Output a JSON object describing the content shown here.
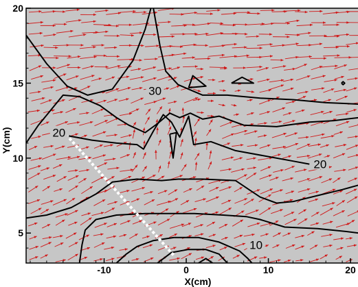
{
  "chart_data": {
    "type": "contour_vector",
    "xlabel": "X(cm)",
    "ylabel": "Y(cm)",
    "xlim": [
      -19.5,
      21
    ],
    "ylim": [
      3,
      20
    ],
    "xticks": [
      {
        "value": -10,
        "label": "-10"
      },
      {
        "value": 0,
        "label": "0"
      },
      {
        "value": 10,
        "label": "10"
      },
      {
        "value": 20,
        "label": "20"
      }
    ],
    "yticks": [
      {
        "value": 5,
        "label": "5"
      },
      {
        "value": 10,
        "label": "10"
      },
      {
        "value": 15,
        "label": "15"
      },
      {
        "value": 20,
        "label": "20"
      }
    ],
    "contour_levels": [
      10,
      20,
      30
    ],
    "contour_labels": [
      {
        "text": "30",
        "x": -3.8,
        "y": 14.5
      },
      {
        "text": "20",
        "x": -15.5,
        "y": 11.7
      },
      {
        "text": "20",
        "x": 16.3,
        "y": 9.6
      },
      {
        "text": "10",
        "x": 8.5,
        "y": 4.2
      }
    ],
    "contour_lines": [
      [
        [
          -19.5,
          18.2
        ],
        [
          -17,
          16.3
        ],
        [
          -14.5,
          14.8
        ],
        [
          -12,
          14.2
        ],
        [
          -9,
          14.6
        ],
        [
          -6.5,
          16.5
        ],
        [
          -5,
          18.6
        ],
        [
          -4.3,
          20
        ]
      ],
      [
        [
          -4,
          20
        ],
        [
          -3.2,
          17.5
        ],
        [
          -2.5,
          15.8
        ],
        [
          -1,
          14.9
        ],
        [
          2,
          14.2
        ],
        [
          5,
          14.2
        ],
        [
          9,
          14.0
        ],
        [
          13,
          13.9
        ],
        [
          17,
          13.7
        ],
        [
          21,
          13.6
        ]
      ],
      [
        [
          -19.5,
          11.0
        ],
        [
          -18,
          12.2
        ],
        [
          -16.5,
          13.2
        ],
        [
          -15,
          14.2
        ],
        [
          -13,
          14.1
        ],
        [
          -10.5,
          13.5
        ],
        [
          -8.5,
          12.7
        ],
        [
          -7,
          12.2
        ],
        [
          -5,
          11.7
        ],
        [
          -3.5,
          12.3
        ],
        [
          -2,
          13.0
        ],
        [
          -0.8,
          12.7
        ],
        [
          0.5,
          13.0
        ],
        [
          2,
          12.6
        ],
        [
          4,
          12.8
        ],
        [
          7,
          12.2
        ],
        [
          11,
          12.1
        ],
        [
          15,
          12.4
        ],
        [
          18,
          12.5
        ],
        [
          21,
          12.7
        ]
      ],
      [
        [
          -14.5,
          11.5
        ],
        [
          -11.5,
          11.2
        ],
        [
          -8.5,
          11.0
        ],
        [
          -6,
          10.9
        ],
        [
          -5.2,
          10.6
        ],
        [
          -4,
          11.8
        ],
        [
          -2.8,
          12.9
        ],
        [
          -1.8,
          12.4
        ],
        [
          -0.8,
          11.4
        ],
        [
          0.3,
          12.8
        ],
        [
          0.9,
          10.9
        ],
        [
          3,
          11.1
        ],
        [
          6,
          10.5
        ],
        [
          10,
          10.1
        ],
        [
          13,
          9.8
        ],
        [
          15,
          9.6
        ]
      ],
      [
        [
          -2.0,
          11.6
        ],
        [
          -1.6,
          10.0
        ],
        [
          -1.2,
          11.7
        ],
        [
          -2.0,
          11.6
        ]
      ],
      [
        [
          0.3,
          14.7
        ],
        [
          0.8,
          15.5
        ],
        [
          2.4,
          14.8
        ],
        [
          0.3,
          14.7
        ]
      ],
      [
        [
          5.5,
          15.0
        ],
        [
          6.8,
          15.4
        ],
        [
          8.2,
          15.0
        ],
        [
          5.5,
          15.0
        ]
      ],
      [
        [
          18.9,
          15.0
        ],
        [
          19.1,
          15.1
        ],
        [
          19.3,
          15.0
        ],
        [
          19.1,
          14.9
        ],
        [
          18.9,
          15.0
        ]
      ],
      [
        [
          -19.5,
          6.0
        ],
        [
          -17,
          6.2
        ],
        [
          -14,
          6.7
        ],
        [
          -11,
          7.6
        ],
        [
          -9,
          8.4
        ],
        [
          -6,
          8.6
        ],
        [
          -3,
          8.5
        ],
        [
          -1,
          8.6
        ],
        [
          2,
          8.6
        ],
        [
          6,
          8.5
        ],
        [
          9,
          7.4
        ],
        [
          11,
          7.0
        ],
        [
          13,
          7.1
        ],
        [
          16,
          7.5
        ],
        [
          19,
          7.9
        ],
        [
          21,
          8.2
        ]
      ],
      [
        [
          -13,
          3
        ],
        [
          -12.7,
          4.2
        ],
        [
          -12.3,
          5.2
        ],
        [
          -11,
          5.9
        ],
        [
          -8.5,
          6.2
        ],
        [
          -5,
          6.3
        ],
        [
          -2,
          6.3
        ],
        [
          1,
          6.3
        ],
        [
          4.5,
          6.2
        ],
        [
          7.3,
          6.1
        ],
        [
          9,
          5.9
        ],
        [
          12,
          5.4
        ],
        [
          16,
          5.3
        ],
        [
          19.5,
          5.1
        ],
        [
          21,
          5.0
        ]
      ],
      [
        [
          -8.5,
          3
        ],
        [
          -7.3,
          3.6
        ],
        [
          -6,
          4.1
        ],
        [
          -4,
          4.5
        ],
        [
          -1.5,
          4.7
        ],
        [
          1.5,
          4.7
        ],
        [
          4,
          4.4
        ],
        [
          6.5,
          3.8
        ],
        [
          7.5,
          3.3
        ],
        [
          8,
          3
        ]
      ],
      [
        [
          -3.5,
          3
        ],
        [
          -1.8,
          3.7
        ],
        [
          0.2,
          3.9
        ],
        [
          2.4,
          3.9
        ],
        [
          4,
          3.6
        ],
        [
          5,
          3
        ]
      ],
      [
        [
          1.5,
          3
        ],
        [
          2.4,
          3.3
        ],
        [
          3.2,
          3
        ]
      ]
    ],
    "dashed_line": [
      [
        -15.0,
        11.8
      ],
      [
        -1.5,
        3.5
      ]
    ],
    "vector_field": "red arrows, predominantly pointing right with upward tilt"
  }
}
